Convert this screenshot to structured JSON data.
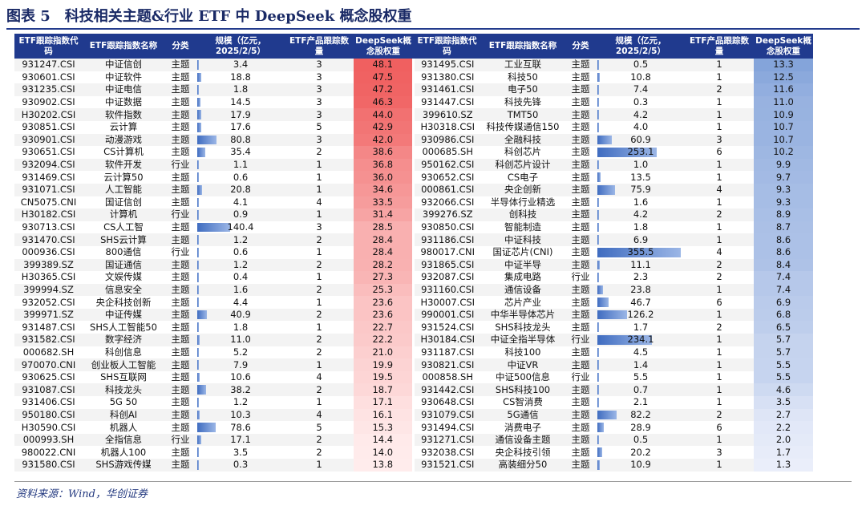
{
  "title": "图表 5　科技相关主题&行业 ETF 中 DeepSeek 概念股权重",
  "source": "资料来源：Wind，华创证券",
  "headers": [
    "ETF跟踪指数代码",
    "ETF跟踪指数名称",
    "分类",
    "规模（亿元，2025/2/5）",
    "ETF产品跟踪数量",
    "DeepSeek概念股权重"
  ],
  "scale_max": 355.5,
  "left_weight_range": [
    13.8,
    48.1
  ],
  "right_weight_range": [
    1.3,
    13.3
  ],
  "left": [
    [
      "931247.CSI",
      "中证信创",
      "主题",
      "3.4",
      "3",
      "48.1"
    ],
    [
      "930601.CSI",
      "中证软件",
      "主题",
      "18.8",
      "3",
      "47.5"
    ],
    [
      "931235.CSI",
      "中证电信",
      "主题",
      "1.8",
      "3",
      "47.2"
    ],
    [
      "930902.CSI",
      "中证数据",
      "主题",
      "14.5",
      "3",
      "46.3"
    ],
    [
      "H30202.CSI",
      "软件指数",
      "主题",
      "17.9",
      "3",
      "44.0"
    ],
    [
      "930851.CSI",
      "云计算",
      "主题",
      "17.6",
      "5",
      "42.9"
    ],
    [
      "930901.CSI",
      "动漫游戏",
      "主题",
      "80.8",
      "3",
      "42.0"
    ],
    [
      "930651.CSI",
      "CS计算机",
      "主题",
      "35.4",
      "2",
      "38.6"
    ],
    [
      "932094.CSI",
      "软件开发",
      "行业",
      "1.1",
      "1",
      "36.8"
    ],
    [
      "931469.CSI",
      "云计算50",
      "主题",
      "0.6",
      "1",
      "36.0"
    ],
    [
      "931071.CSI",
      "人工智能",
      "主题",
      "20.8",
      "1",
      "34.6"
    ],
    [
      "CN5075.CNI",
      "国证信创",
      "主题",
      "4.1",
      "4",
      "33.5"
    ],
    [
      "H30182.CSI",
      "计算机",
      "行业",
      "0.9",
      "1",
      "31.4"
    ],
    [
      "930713.CSI",
      "CS人工智",
      "主题",
      "140.4",
      "3",
      "28.5"
    ],
    [
      "931470.CSI",
      "SHS云计算",
      "主题",
      "1.2",
      "2",
      "28.4"
    ],
    [
      "000936.CSI",
      "800通信",
      "行业",
      "0.6",
      "1",
      "28.4"
    ],
    [
      "399389.SZ",
      "国证通信",
      "主题",
      "1.2",
      "2",
      "28.2"
    ],
    [
      "H30365.CSI",
      "文娱传媒",
      "主题",
      "0.4",
      "1",
      "27.3"
    ],
    [
      "399994.SZ",
      "信息安全",
      "主题",
      "1.6",
      "2",
      "25.3"
    ],
    [
      "932052.CSI",
      "央企科技创新",
      "主题",
      "4.4",
      "1",
      "23.6"
    ],
    [
      "399971.SZ",
      "中证传媒",
      "主题",
      "40.9",
      "2",
      "23.6"
    ],
    [
      "931487.CSI",
      "SHS人工智能50",
      "主题",
      "1.8",
      "1",
      "22.7"
    ],
    [
      "931582.CSI",
      "数字经济",
      "主题",
      "11.0",
      "2",
      "22.2"
    ],
    [
      "000682.SH",
      "科创信息",
      "主题",
      "5.2",
      "2",
      "21.0"
    ],
    [
      "970070.CNI",
      "创业板人工智能",
      "主题",
      "7.9",
      "1",
      "19.9"
    ],
    [
      "930625.CSI",
      "SHS互联网",
      "主题",
      "10.6",
      "4",
      "19.5"
    ],
    [
      "931087.CSI",
      "科技龙头",
      "主题",
      "38.2",
      "2",
      "18.7"
    ],
    [
      "931406.CSI",
      "5G 50",
      "主题",
      "1.2",
      "1",
      "17.1"
    ],
    [
      "950180.CSI",
      "科创AI",
      "主题",
      "10.3",
      "4",
      "16.1"
    ],
    [
      "H30590.CSI",
      "机器人",
      "主题",
      "78.6",
      "5",
      "15.3"
    ],
    [
      "000993.SH",
      "全指信息",
      "行业",
      "17.1",
      "2",
      "14.4"
    ],
    [
      "980022.CNI",
      "机器人100",
      "主题",
      "3.5",
      "2",
      "14.0"
    ],
    [
      "931580.CSI",
      "SHS游戏传媒",
      "主题",
      "0.3",
      "1",
      "13.8"
    ]
  ],
  "right": [
    [
      "931495.CSI",
      "工业互联",
      "主题",
      "0.5",
      "1",
      "13.3"
    ],
    [
      "931380.CSI",
      "科技50",
      "主题",
      "10.8",
      "1",
      "12.5"
    ],
    [
      "931461.CSI",
      "电子50",
      "主题",
      "7.4",
      "2",
      "11.6"
    ],
    [
      "931447.CSI",
      "科技先锋",
      "主题",
      "0.3",
      "1",
      "11.0"
    ],
    [
      "399610.SZ",
      "TMT50",
      "主题",
      "4.2",
      "1",
      "10.9"
    ],
    [
      "H30318.CSI",
      "科技传媒通信150",
      "主题",
      "4.0",
      "1",
      "10.7"
    ],
    [
      "930986.CSI",
      "全融科技",
      "主题",
      "60.9",
      "3",
      "10.7"
    ],
    [
      "000685.SH",
      "科创芯片",
      "主题",
      "253.1",
      "6",
      "10.2"
    ],
    [
      "950162.CSI",
      "科创芯片设计",
      "主题",
      "1.0",
      "1",
      "9.9"
    ],
    [
      "930652.CSI",
      "CS电子",
      "主题",
      "13.5",
      "1",
      "9.7"
    ],
    [
      "000861.CSI",
      "央企创新",
      "主题",
      "75.9",
      "4",
      "9.3"
    ],
    [
      "932066.CSI",
      "半导体行业精选",
      "主题",
      "1.6",
      "1",
      "9.3"
    ],
    [
      "399276.SZ",
      "创科技",
      "主题",
      "4.2",
      "2",
      "8.9"
    ],
    [
      "930850.CSI",
      "智能制造",
      "主题",
      "1.8",
      "1",
      "8.7"
    ],
    [
      "931186.CSI",
      "中证科技",
      "主题",
      "6.9",
      "1",
      "8.6"
    ],
    [
      "980017.CNI",
      "国证芯片(CNI)",
      "主题",
      "355.5",
      "4",
      "8.6"
    ],
    [
      "931865.CSI",
      "中证半导",
      "主题",
      "11.1",
      "2",
      "8.4"
    ],
    [
      "932087.CSI",
      "集成电路",
      "行业",
      "2.3",
      "2",
      "7.4"
    ],
    [
      "931160.CSI",
      "通信设备",
      "主题",
      "23.8",
      "1",
      "7.4"
    ],
    [
      "H30007.CSI",
      "芯片产业",
      "主题",
      "46.7",
      "6",
      "6.9"
    ],
    [
      "990001.CSI",
      "中华半导体芯片",
      "主题",
      "126.2",
      "1",
      "6.8"
    ],
    [
      "931524.CSI",
      "SHS科技龙头",
      "主题",
      "1.7",
      "2",
      "6.5"
    ],
    [
      "H30184.CSI",
      "中证全指半导体",
      "行业",
      "234.1",
      "1",
      "5.7"
    ],
    [
      "931187.CSI",
      "科技100",
      "主题",
      "4.5",
      "1",
      "5.7"
    ],
    [
      "930821.CSI",
      "中证VR",
      "主题",
      "1.4",
      "1",
      "5.5"
    ],
    [
      "000858.SH",
      "中证500信息",
      "行业",
      "5.5",
      "1",
      "5.5"
    ],
    [
      "931442.CSI",
      "SHS科技100",
      "主题",
      "0.7",
      "1",
      "4.6"
    ],
    [
      "930648.CSI",
      "CS智消费",
      "主题",
      "2.1",
      "1",
      "3.5"
    ],
    [
      "931079.CSI",
      "5G通信",
      "主题",
      "82.2",
      "2",
      "2.7"
    ],
    [
      "931494.CSI",
      "消费电子",
      "主题",
      "28.9",
      "6",
      "2.2"
    ],
    [
      "931271.CSI",
      "通信设备主题",
      "主题",
      "0.5",
      "1",
      "2.0"
    ],
    [
      "932038.CSI",
      "央企科技引领",
      "主题",
      "20.2",
      "3",
      "1.7"
    ],
    [
      "931521.CSI",
      "高装细分50",
      "主题",
      "10.9",
      "1",
      "1.3"
    ]
  ]
}
